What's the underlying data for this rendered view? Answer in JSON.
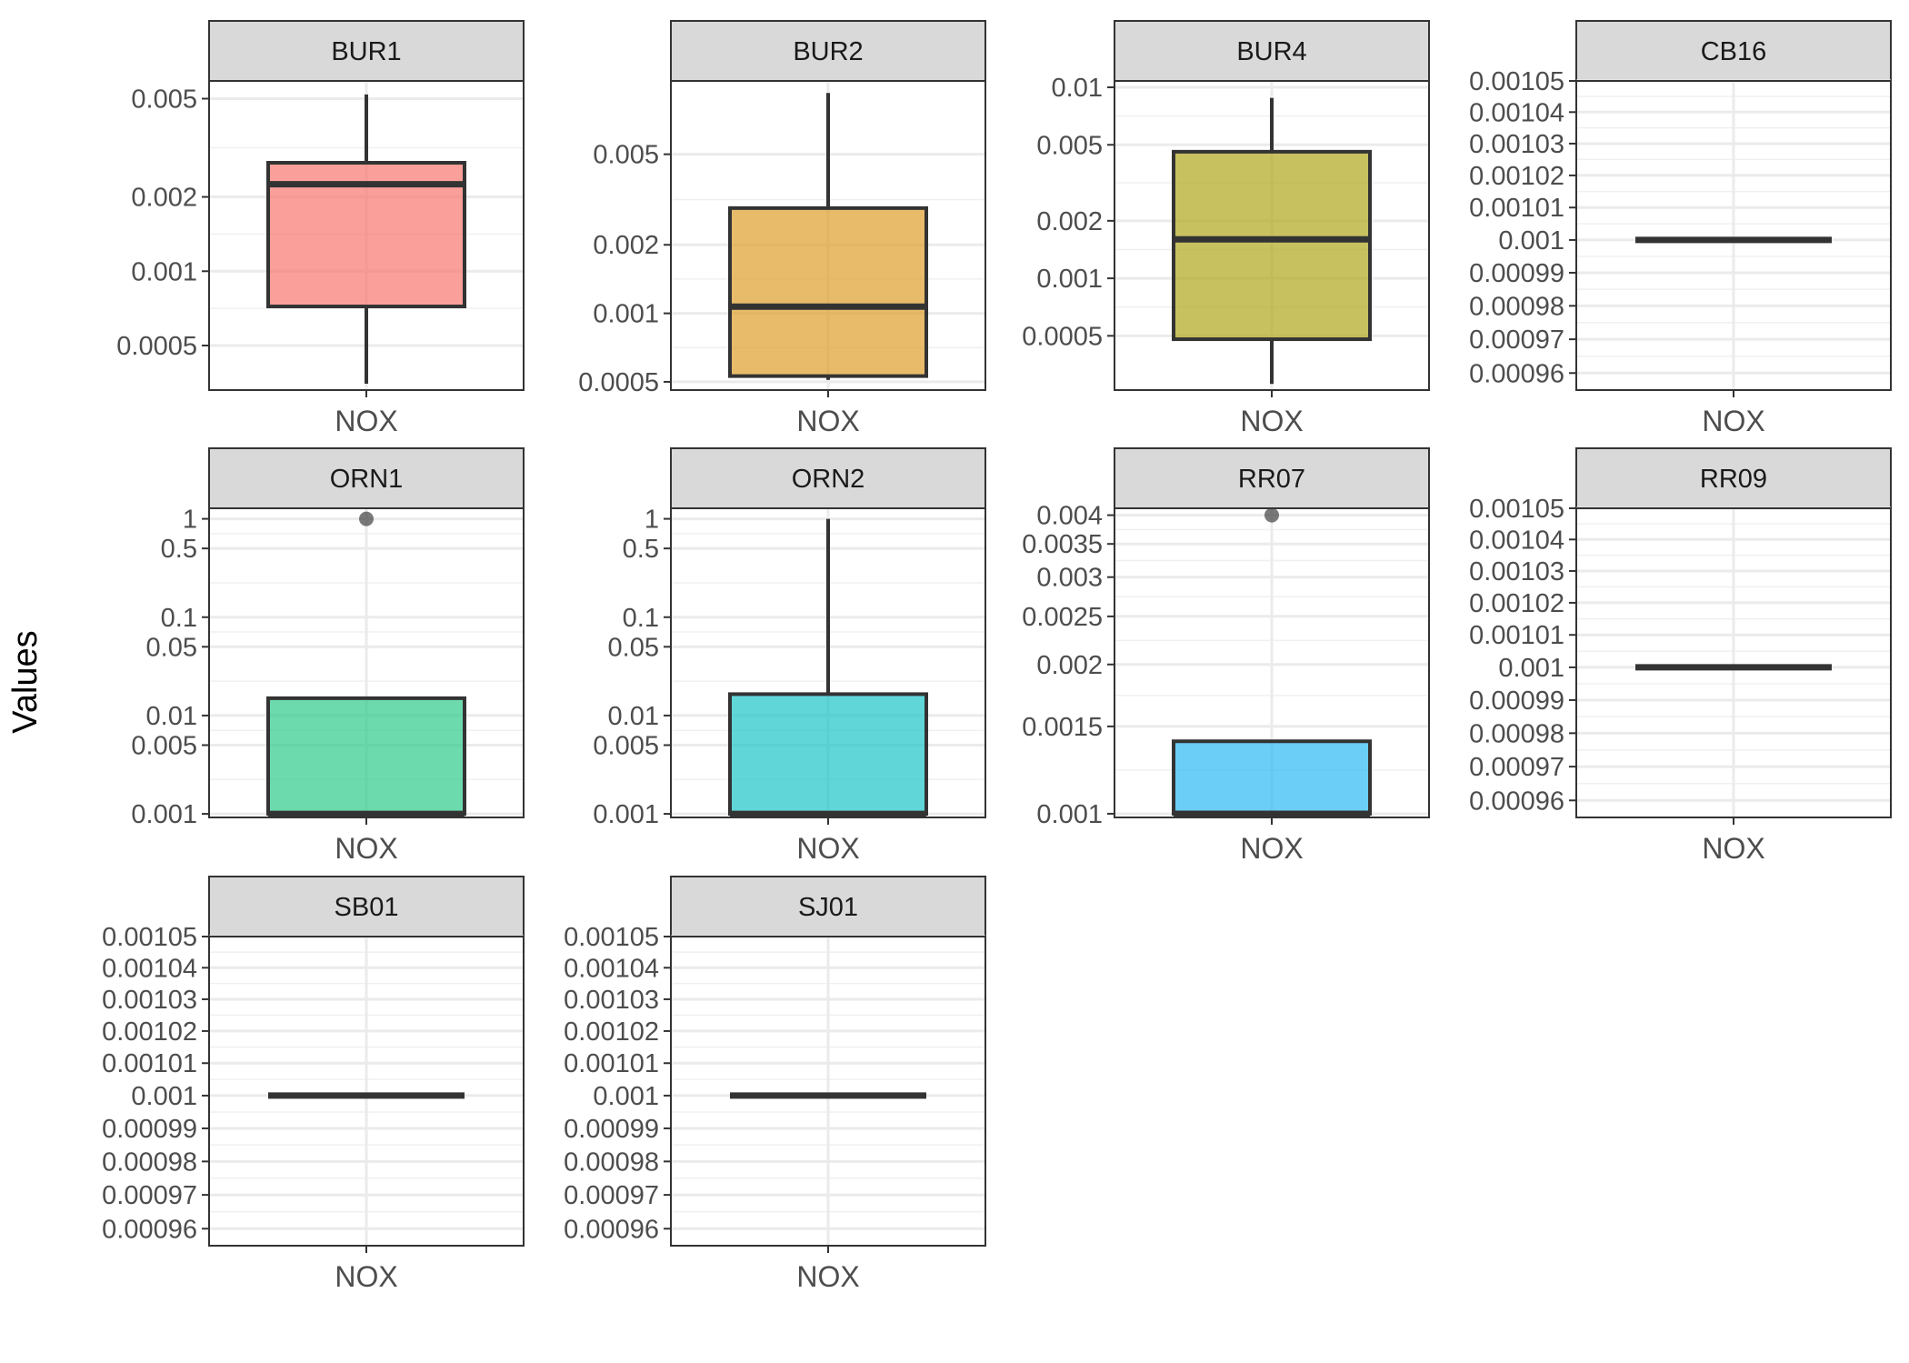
{
  "chart_data": {
    "type": "box",
    "ylabel": "Values",
    "y_scale": "log",
    "grid": true,
    "legend": "none",
    "category": "NOX",
    "facets": [
      {
        "name": "BUR1",
        "color": "#F8766D",
        "ylim": [
          0.00033,
          0.0059
        ],
        "ticks": [
          {
            "v": 0.0005,
            "l": "0.0005"
          },
          {
            "v": 0.001,
            "l": "0.001"
          },
          {
            "v": 0.002,
            "l": "0.002"
          },
          {
            "v": 0.005,
            "l": "0.005"
          }
        ],
        "box": {
          "lower_whisker": 0.00035,
          "q1": 0.00072,
          "median": 0.00225,
          "q3": 0.00275,
          "upper_whisker": 0.0052
        },
        "outliers": []
      },
      {
        "name": "BUR2",
        "color": "#DE9E2C",
        "ylim": [
          0.00046,
          0.0105
        ],
        "ticks": [
          {
            "v": 0.0005,
            "l": "0.0005"
          },
          {
            "v": 0.001,
            "l": "0.001"
          },
          {
            "v": 0.002,
            "l": "0.002"
          },
          {
            "v": 0.005,
            "l": "0.005"
          }
        ],
        "box": {
          "lower_whisker": 0.00051,
          "q1": 0.00053,
          "median": 0.00107,
          "q3": 0.0029,
          "upper_whisker": 0.0093
        },
        "outliers": []
      },
      {
        "name": "BUR4",
        "color": "#AFA71D",
        "ylim": [
          0.00026,
          0.0108
        ],
        "ticks": [
          {
            "v": 0.0005,
            "l": "0.0005"
          },
          {
            "v": 0.001,
            "l": "0.001"
          },
          {
            "v": 0.002,
            "l": "0.002"
          },
          {
            "v": 0.005,
            "l": "0.005"
          },
          {
            "v": 0.01,
            "l": "0.01"
          }
        ],
        "box": {
          "lower_whisker": 0.00028,
          "q1": 0.00048,
          "median": 0.0016,
          "q3": 0.0046,
          "upper_whisker": 0.0088
        },
        "outliers": []
      },
      {
        "name": "CB16",
        "color": "#333333",
        "ylim": [
          0.000955,
          0.00105
        ],
        "ticks": [
          {
            "v": 0.00096,
            "l": "0.00096"
          },
          {
            "v": 0.00097,
            "l": "0.00097"
          },
          {
            "v": 0.00098,
            "l": "0.00098"
          },
          {
            "v": 0.00099,
            "l": "0.00099"
          },
          {
            "v": 0.001,
            "l": "0.001"
          },
          {
            "v": 0.00101,
            "l": "0.00101"
          },
          {
            "v": 0.00102,
            "l": "0.00102"
          },
          {
            "v": 0.00103,
            "l": "0.00103"
          },
          {
            "v": 0.00104,
            "l": "0.00104"
          },
          {
            "v": 0.00105,
            "l": "0.00105"
          }
        ],
        "box": {
          "lower_whisker": 0.001,
          "q1": 0.001,
          "median": 0.001,
          "q3": 0.001,
          "upper_whisker": 0.001
        },
        "outliers": []
      },
      {
        "name": "ORN1",
        "color": "#2DCB8A",
        "ylim": [
          0.00092,
          1.28
        ],
        "ticks": [
          {
            "v": 0.001,
            "l": "0.001"
          },
          {
            "v": 0.005,
            "l": "0.005"
          },
          {
            "v": 0.01,
            "l": "0.01"
          },
          {
            "v": 0.05,
            "l": "0.05"
          },
          {
            "v": 0.1,
            "l": "0.1"
          },
          {
            "v": 0.5,
            "l": "0.5"
          },
          {
            "v": 1,
            "l": "1"
          }
        ],
        "box": {
          "lower_whisker": 0.001,
          "q1": 0.001,
          "median": 0.001,
          "q3": 0.015,
          "upper_whisker": 0.015
        },
        "outliers": [
          1
        ]
      },
      {
        "name": "ORN2",
        "color": "#1DC5C9",
        "ylim": [
          0.00092,
          1.28
        ],
        "ticks": [
          {
            "v": 0.001,
            "l": "0.001"
          },
          {
            "v": 0.005,
            "l": "0.005"
          },
          {
            "v": 0.01,
            "l": "0.01"
          },
          {
            "v": 0.05,
            "l": "0.05"
          },
          {
            "v": 0.1,
            "l": "0.1"
          },
          {
            "v": 0.5,
            "l": "0.5"
          },
          {
            "v": 1,
            "l": "1"
          }
        ],
        "box": {
          "lower_whisker": 0.001,
          "q1": 0.001,
          "median": 0.001,
          "q3": 0.0165,
          "upper_whisker": 1
        },
        "outliers": []
      },
      {
        "name": "RR07",
        "color": "#2BB9F2",
        "ylim": [
          0.000983,
          0.00413
        ],
        "ticks": [
          {
            "v": 0.001,
            "l": "0.001"
          },
          {
            "v": 0.0015,
            "l": "0.0015"
          },
          {
            "v": 0.002,
            "l": "0.002"
          },
          {
            "v": 0.0025,
            "l": "0.0025"
          },
          {
            "v": 0.003,
            "l": "0.003"
          },
          {
            "v": 0.0035,
            "l": "0.0035"
          },
          {
            "v": 0.004,
            "l": "0.004"
          }
        ],
        "box": {
          "lower_whisker": 0.001,
          "q1": 0.001,
          "median": 0.001,
          "q3": 0.0014,
          "upper_whisker": 0.0014
        },
        "outliers": [
          0.004
        ]
      },
      {
        "name": "RR09",
        "color": "#333333",
        "ylim": [
          0.000955,
          0.00105
        ],
        "ticks": [
          {
            "v": 0.00096,
            "l": "0.00096"
          },
          {
            "v": 0.00097,
            "l": "0.00097"
          },
          {
            "v": 0.00098,
            "l": "0.00098"
          },
          {
            "v": 0.00099,
            "l": "0.00099"
          },
          {
            "v": 0.001,
            "l": "0.001"
          },
          {
            "v": 0.00101,
            "l": "0.00101"
          },
          {
            "v": 0.00102,
            "l": "0.00102"
          },
          {
            "v": 0.00103,
            "l": "0.00103"
          },
          {
            "v": 0.00104,
            "l": "0.00104"
          },
          {
            "v": 0.00105,
            "l": "0.00105"
          }
        ],
        "box": {
          "lower_whisker": 0.001,
          "q1": 0.001,
          "median": 0.001,
          "q3": 0.001,
          "upper_whisker": 0.001
        },
        "outliers": []
      },
      {
        "name": "SB01",
        "color": "#333333",
        "ylim": [
          0.000955,
          0.00105
        ],
        "ticks": [
          {
            "v": 0.00096,
            "l": "0.00096"
          },
          {
            "v": 0.00097,
            "l": "0.00097"
          },
          {
            "v": 0.00098,
            "l": "0.00098"
          },
          {
            "v": 0.00099,
            "l": "0.00099"
          },
          {
            "v": 0.001,
            "l": "0.001"
          },
          {
            "v": 0.00101,
            "l": "0.00101"
          },
          {
            "v": 0.00102,
            "l": "0.00102"
          },
          {
            "v": 0.00103,
            "l": "0.00103"
          },
          {
            "v": 0.00104,
            "l": "0.00104"
          },
          {
            "v": 0.00105,
            "l": "0.00105"
          }
        ],
        "box": {
          "lower_whisker": 0.001,
          "q1": 0.001,
          "median": 0.001,
          "q3": 0.001,
          "upper_whisker": 0.001
        },
        "outliers": []
      },
      {
        "name": "SJ01",
        "color": "#333333",
        "ylim": [
          0.000955,
          0.00105
        ],
        "ticks": [
          {
            "v": 0.00096,
            "l": "0.00096"
          },
          {
            "v": 0.00097,
            "l": "0.00097"
          },
          {
            "v": 0.00098,
            "l": "0.00098"
          },
          {
            "v": 0.00099,
            "l": "0.00099"
          },
          {
            "v": 0.001,
            "l": "0.001"
          },
          {
            "v": 0.00101,
            "l": "0.00101"
          },
          {
            "v": 0.00102,
            "l": "0.00102"
          },
          {
            "v": 0.00103,
            "l": "0.00103"
          },
          {
            "v": 0.00104,
            "l": "0.00104"
          },
          {
            "v": 0.00105,
            "l": "0.00105"
          }
        ],
        "box": {
          "lower_whisker": 0.001,
          "q1": 0.001,
          "median": 0.001,
          "q3": 0.001,
          "upper_whisker": 0.001
        },
        "outliers": []
      }
    ]
  }
}
